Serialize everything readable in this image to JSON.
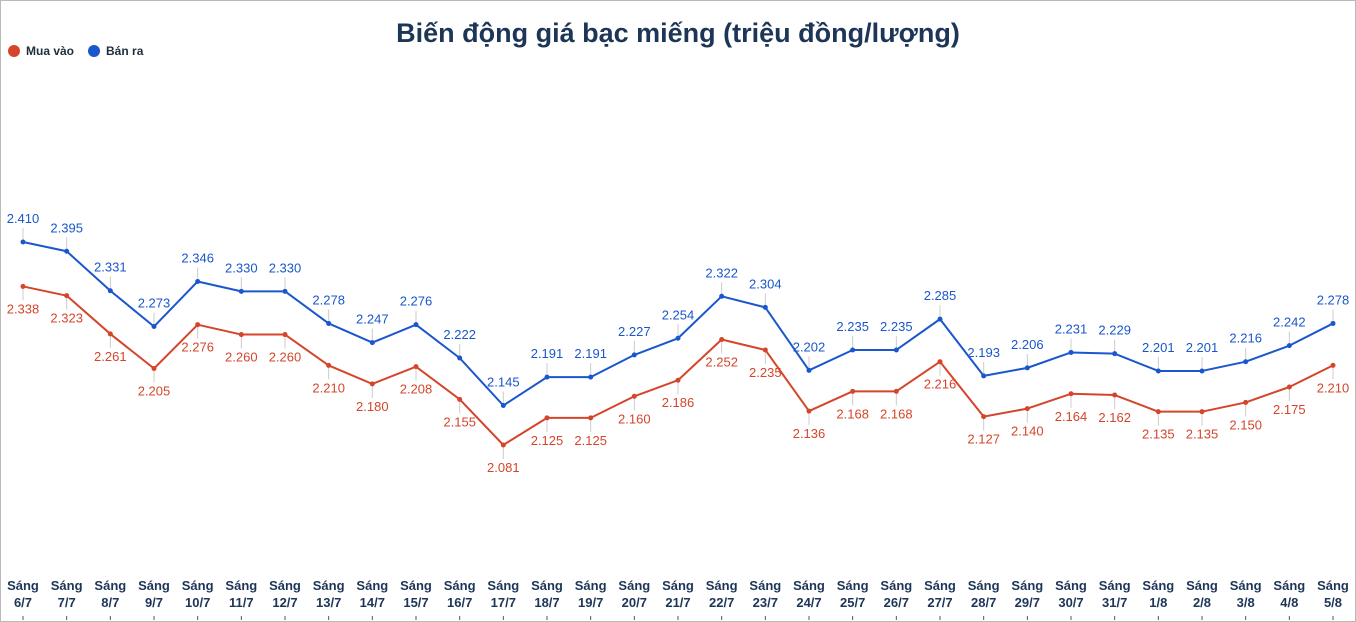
{
  "chart_data": {
    "type": "line",
    "title": "Biến động giá bạc miếng (triệu đồng/lượng)",
    "xlabel": "",
    "ylabel": "",
    "grid": false,
    "legend_position": "top-left",
    "ylim": [
      1.7,
      2.7
    ],
    "categories": [
      [
        "Sáng",
        "6/7"
      ],
      [
        "Sáng",
        "7/7"
      ],
      [
        "Sáng",
        "8/7"
      ],
      [
        "Sáng",
        "9/7"
      ],
      [
        "Sáng",
        "10/7"
      ],
      [
        "Sáng",
        "11/7"
      ],
      [
        "Sáng",
        "12/7"
      ],
      [
        "Sáng",
        "13/7"
      ],
      [
        "Sáng",
        "14/7"
      ],
      [
        "Sáng",
        "15/7"
      ],
      [
        "Sáng",
        "16/7"
      ],
      [
        "Sáng",
        "17/7"
      ],
      [
        "Sáng",
        "18/7"
      ],
      [
        "Sáng",
        "19/7"
      ],
      [
        "Sáng",
        "20/7"
      ],
      [
        "Sáng",
        "21/7"
      ],
      [
        "Sáng",
        "22/7"
      ],
      [
        "Sáng",
        "23/7"
      ],
      [
        "Sáng",
        "24/7"
      ],
      [
        "Sáng",
        "25/7"
      ],
      [
        "Sáng",
        "26/7"
      ],
      [
        "Sáng",
        "27/7"
      ],
      [
        "Sáng",
        "28/7"
      ],
      [
        "Sáng",
        "29/7"
      ],
      [
        "Sáng",
        "30/7"
      ],
      [
        "Sáng",
        "31/7"
      ],
      [
        "Sáng",
        "1/8"
      ],
      [
        "Sáng",
        "2/8"
      ],
      [
        "Sáng",
        "3/8"
      ],
      [
        "Sáng",
        "4/8"
      ],
      [
        "Sáng",
        "5/8"
      ]
    ],
    "series": [
      {
        "name": "Mua vào",
        "color": "#d4452b",
        "values": [
          2.338,
          2.323,
          2.261,
          2.205,
          2.276,
          2.26,
          2.26,
          2.21,
          2.18,
          2.208,
          2.155,
          2.081,
          2.125,
          2.125,
          2.16,
          2.186,
          2.252,
          2.235,
          2.136,
          2.168,
          2.168,
          2.216,
          2.127,
          2.14,
          2.164,
          2.162,
          2.135,
          2.135,
          2.15,
          2.175,
          2.21
        ],
        "labels": [
          "2.338",
          "2.323",
          "2.261",
          "2.205",
          "2.276",
          "2.260",
          "2.260",
          "2.210",
          "2.180",
          "2.208",
          "2.155",
          "2.081",
          "2.125",
          "2.125",
          "2.160",
          "2.186",
          "2.252",
          "2.235",
          "2.136",
          "2.168",
          "2.168",
          "2.216",
          "2.127",
          "2.140",
          "2.164",
          "2.162",
          "2.135",
          "2.135",
          "2.150",
          "2.175",
          "2.210"
        ]
      },
      {
        "name": "Bán ra",
        "color": "#1a56cc",
        "values": [
          2.41,
          2.395,
          2.331,
          2.273,
          2.346,
          2.33,
          2.33,
          2.278,
          2.247,
          2.276,
          2.222,
          2.145,
          2.191,
          2.191,
          2.227,
          2.254,
          2.322,
          2.304,
          2.202,
          2.235,
          2.235,
          2.285,
          2.193,
          2.206,
          2.231,
          2.229,
          2.201,
          2.201,
          2.216,
          2.242,
          2.278
        ],
        "labels": [
          "2.410",
          "2.395",
          "2.331",
          "2.273",
          "2.346",
          "2.330",
          "2.330",
          "2.278",
          "2.247",
          "2.276",
          "2.222",
          "2.145",
          "2.191",
          "2.191",
          "2.227",
          "2.254",
          "2.322",
          "2.304",
          "2.202",
          "2.235",
          "2.235",
          "2.285",
          "2.193",
          "2.206",
          "2.231",
          "2.229",
          "2.201",
          "2.201",
          "2.216",
          "2.242",
          "2.278"
        ]
      }
    ]
  }
}
